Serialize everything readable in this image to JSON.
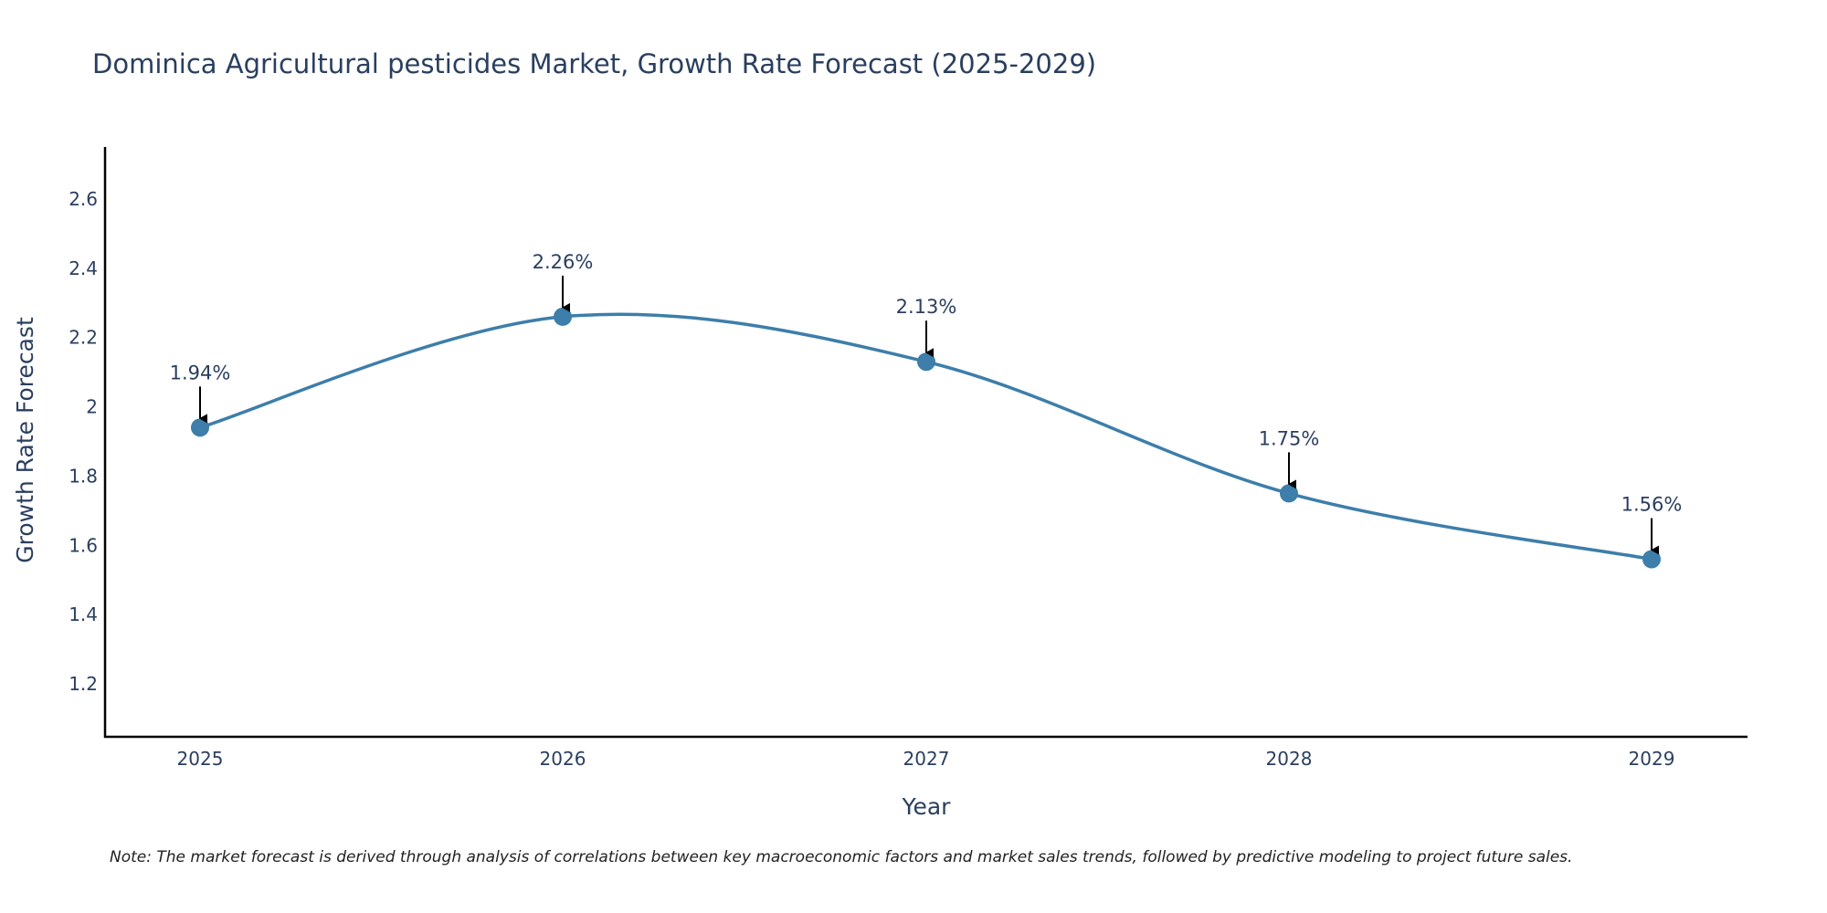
{
  "chart_data": {
    "type": "line",
    "title": "Dominica Agricultural pesticides Market, Growth Rate Forecast (2025-2029)",
    "xlabel": "Year",
    "ylabel": "Growth Rate Forecast",
    "categories": [
      "2025",
      "2026",
      "2027",
      "2028",
      "2029"
    ],
    "series": [
      {
        "name": "Growth Rate Forecast",
        "values": [
          1.94,
          2.26,
          2.13,
          1.75,
          1.56
        ],
        "labels": [
          "1.94%",
          "2.26%",
          "2.13%",
          "1.75%",
          "1.56%"
        ],
        "color": "#3d7eaa"
      }
    ],
    "ylim": [
      1.05,
      2.75
    ],
    "yticks": [
      1.2,
      1.4,
      1.6,
      1.8,
      2,
      2.2,
      2.4,
      2.6
    ],
    "ytick_labels": [
      "1.2",
      "1.4",
      "1.6",
      "1.8",
      "2",
      "2.2",
      "2.4",
      "2.6"
    ],
    "grid": false,
    "line_shape": "spline",
    "note": "Note: The market forecast is derived through analysis of correlations between key macroeconomic factors and market sales trends, followed by predictive modeling to project future sales."
  },
  "colors": {
    "line": "#3d7eaa",
    "marker": "#3d7eaa",
    "text": "#2a3f5f",
    "axis": "#000000",
    "arrow": "#000000"
  }
}
